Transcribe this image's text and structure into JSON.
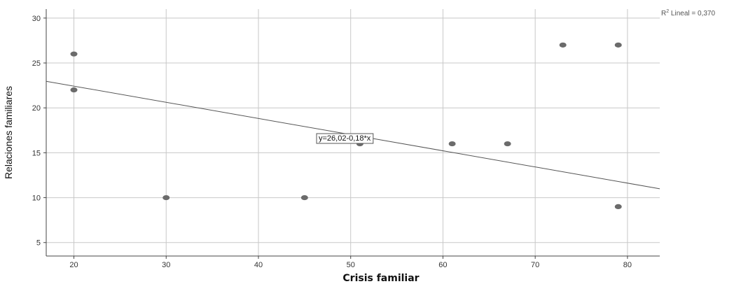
{
  "chart_data": {
    "type": "scatter",
    "xlabel": "Crisis familiar",
    "ylabel": "Relaciones familiares",
    "xlim": [
      17,
      83.5
    ],
    "ylim": [
      3.5,
      31
    ],
    "xticks": [
      20,
      30,
      40,
      50,
      60,
      70,
      80
    ],
    "yticks": [
      5,
      10,
      15,
      20,
      25,
      30
    ],
    "grid": true,
    "points": [
      {
        "x": 20,
        "y": 26
      },
      {
        "x": 20,
        "y": 22
      },
      {
        "x": 30,
        "y": 10
      },
      {
        "x": 45,
        "y": 10
      },
      {
        "x": 51,
        "y": 16
      },
      {
        "x": 61,
        "y": 16
      },
      {
        "x": 67,
        "y": 16
      },
      {
        "x": 73,
        "y": 27
      },
      {
        "x": 79,
        "y": 27
      },
      {
        "x": 79,
        "y": 9
      }
    ],
    "fit_line": {
      "intercept": 26.02,
      "slope": -0.18
    },
    "equation_label": "y=26,02-0,18*x",
    "r2_label_prefix": "R",
    "r2_label_sup": "2",
    "r2_label_suffix": " Lineal = 0,370",
    "point_color": "#6b6b6b",
    "line_color": "#555555",
    "grid_color": "#c8c8c8"
  }
}
